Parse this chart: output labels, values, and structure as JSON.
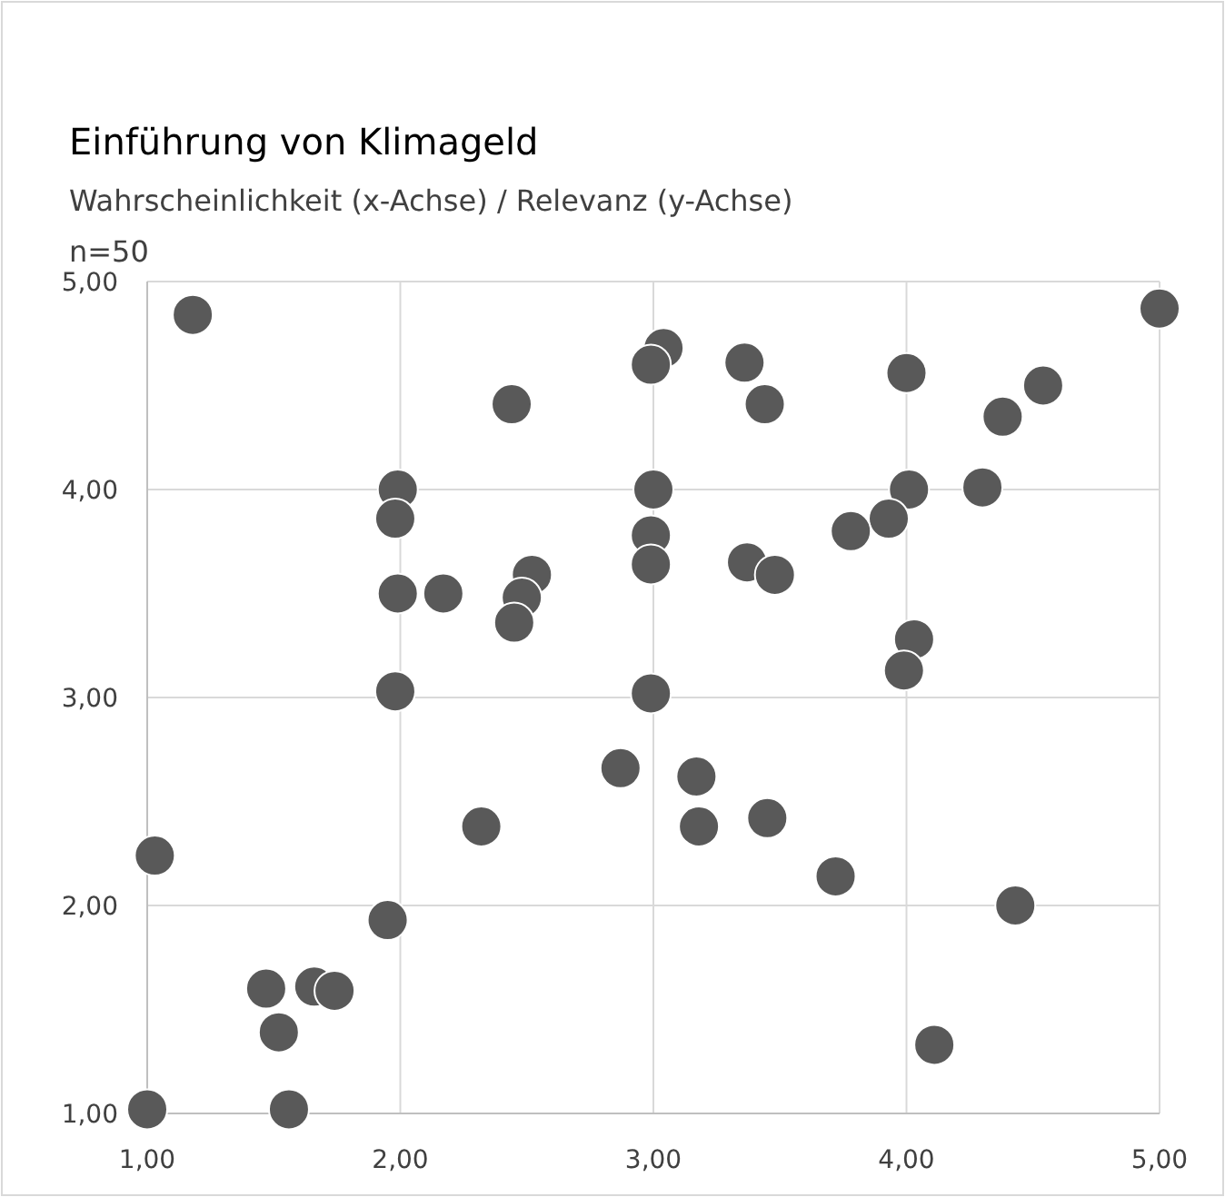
{
  "chart_data": {
    "type": "scatter",
    "title": "Einführung von Klimageld",
    "subtitle": "Wahrscheinlichkeit (x-Achse) / Relevanz (y-Achse)",
    "annotations": [
      "n=50"
    ],
    "x": [
      1.18,
      2.44,
      1.99,
      1.98,
      1.99,
      2.17,
      2.52,
      2.48,
      2.45,
      1.98,
      3.04,
      2.99,
      3.0,
      2.99,
      2.99,
      2.99,
      3.36,
      3.44,
      4.0,
      5.0,
      4.54,
      4.38,
      4.01,
      4.3,
      3.93,
      3.78,
      3.37,
      3.48,
      4.03,
      3.99,
      2.87,
      2.32,
      1.03,
      1.95,
      1.47,
      1.66,
      1.74,
      1.52,
      1.0,
      1.56,
      3.17,
      3.18,
      3.45,
      3.72,
      4.43,
      4.11
    ],
    "values": [
      4.84,
      4.41,
      4.0,
      3.86,
      3.5,
      3.5,
      3.59,
      3.48,
      3.36,
      3.03,
      4.68,
      4.6,
      4.0,
      3.78,
      3.64,
      3.02,
      4.61,
      4.41,
      4.56,
      4.87,
      4.5,
      4.35,
      4.0,
      4.01,
      3.86,
      3.8,
      3.65,
      3.59,
      3.28,
      3.13,
      2.66,
      2.38,
      2.24,
      1.93,
      1.6,
      1.61,
      1.59,
      1.39,
      1.02,
      1.02,
      2.62,
      2.38,
      2.42,
      2.14,
      2.0,
      1.33
    ],
    "color": "#595959",
    "marker": "circle",
    "grid": true,
    "xlim": [
      1,
      5
    ],
    "xticks": [
      {
        "value": 1,
        "label": "1,00"
      },
      {
        "value": 2,
        "label": "2,00"
      },
      {
        "value": 3,
        "label": "3,00"
      },
      {
        "value": 4,
        "label": "4,00"
      },
      {
        "value": 5,
        "label": "5,00"
      }
    ],
    "ylim": [
      1,
      5
    ],
    "yticks": [
      {
        "value": 1,
        "label": "1,00"
      },
      {
        "value": 2,
        "label": "2,00"
      },
      {
        "value": 3,
        "label": "3,00"
      },
      {
        "value": 4,
        "label": "4,00"
      },
      {
        "value": 5,
        "label": "5,00"
      }
    ]
  }
}
